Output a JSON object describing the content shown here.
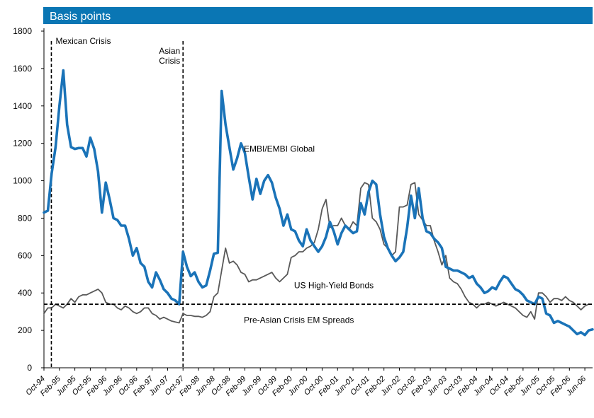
{
  "chart_data": {
    "type": "line",
    "title": "Basis points",
    "ylabel": "",
    "xlabel": "",
    "ylim": [
      0,
      1800
    ],
    "yticks": [
      0,
      200,
      400,
      600,
      800,
      1000,
      1200,
      1400,
      1600,
      1800
    ],
    "xticks": [
      "Oct-94",
      "Feb-95",
      "Jun-95",
      "Oct-95",
      "Feb-96",
      "Jun-96",
      "Oct-96",
      "Feb-97",
      "Jun-97",
      "Oct-97",
      "Feb-98",
      "Jun-98",
      "Oct-98",
      "Feb-99",
      "Jun-99",
      "Oct-99",
      "Feb-00",
      "Jun-00",
      "Oct-00",
      "Feb-01",
      "Jun-01",
      "Oct-01",
      "Feb-02",
      "Jun-02",
      "Oct-02",
      "Feb-03",
      "Jun-03",
      "Oct-03",
      "Feb-04",
      "Jun-04",
      "Oct-04",
      "Feb-05",
      "Jun-05",
      "Oct-05",
      "Feb-06",
      "Jun-06"
    ],
    "colors": {
      "title_bar": "#0a76b4",
      "embi": "#1a73b8",
      "hy": "#595959",
      "reference": "#000000"
    },
    "reference_line": {
      "value": 340,
      "label": "Pre-Asian Crisis EM Spreads"
    },
    "events": [
      {
        "month_index": 1,
        "label": "Mexican Crisis"
      },
      {
        "month_index": 36,
        "label_lines": [
          "Asian",
          "Crisis"
        ]
      }
    ],
    "series": [
      {
        "name": "EMBI/EMBI Global",
        "values": [
          830,
          840,
          1040,
          1180,
          1400,
          1590,
          1300,
          1180,
          1170,
          1175,
          1175,
          1130,
          1230,
          1170,
          1050,
          830,
          990,
          900,
          800,
          790,
          760,
          760,
          690,
          600,
          640,
          560,
          540,
          460,
          430,
          510,
          470,
          420,
          400,
          370,
          360,
          340,
          620,
          540,
          490,
          510,
          460,
          430,
          440,
          520,
          610,
          615,
          1480,
          1300,
          1180,
          1060,
          1120,
          1200,
          1150,
          1020,
          900,
          1010,
          930,
          1000,
          1030,
          990,
          910,
          850,
          760,
          820,
          740,
          730,
          680,
          650,
          740,
          680,
          650,
          620,
          650,
          700,
          780,
          730,
          660,
          720,
          760,
          740,
          720,
          730,
          880,
          820,
          940,
          1000,
          980,
          820,
          700,
          640,
          600,
          570,
          590,
          620,
          750,
          920,
          800,
          960,
          800,
          730,
          720,
          690,
          670,
          640,
          540,
          530,
          520,
          520,
          510,
          500,
          480,
          490,
          450,
          430,
          400,
          410,
          430,
          420,
          460,
          490,
          480,
          450,
          420,
          410,
          390,
          360,
          350,
          340,
          380,
          370,
          290,
          280,
          240,
          250,
          240,
          230,
          220,
          200,
          180,
          190,
          175,
          200,
          205
        ]
      },
      {
        "name": "US High-Yield Bonds",
        "values": [
          290,
          320,
          320,
          340,
          330,
          320,
          340,
          370,
          350,
          380,
          390,
          390,
          400,
          410,
          420,
          400,
          350,
          340,
          340,
          320,
          310,
          330,
          320,
          300,
          290,
          300,
          320,
          320,
          290,
          280,
          260,
          270,
          260,
          250,
          245,
          240,
          290,
          280,
          280,
          275,
          275,
          270,
          280,
          300,
          380,
          400,
          520,
          640,
          560,
          570,
          550,
          510,
          500,
          460,
          470,
          470,
          480,
          490,
          500,
          510,
          480,
          460,
          480,
          500,
          590,
          600,
          620,
          620,
          640,
          650,
          670,
          740,
          850,
          900,
          750,
          760,
          760,
          800,
          760,
          740,
          780,
          760,
          960,
          990,
          980,
          800,
          780,
          740,
          660,
          640,
          600,
          620,
          860,
          860,
          870,
          980,
          990,
          820,
          790,
          760,
          760,
          680,
          620,
          550,
          600,
          480,
          460,
          450,
          420,
          380,
          350,
          340,
          320,
          340,
          340,
          350,
          340,
          330,
          340,
          350,
          340,
          330,
          320,
          300,
          280,
          270,
          300,
          260,
          400,
          400,
          380,
          350,
          370,
          370,
          360,
          380,
          360,
          350,
          330,
          310,
          330,
          340
        ]
      }
    ],
    "annotations": [
      {
        "text": "EMBI/EMBI Global",
        "month_index": 51,
        "value": 1170
      },
      {
        "text": "US High-Yield Bonds",
        "month_index": 64,
        "value": 440
      },
      {
        "text": "Pre-Asian Crisis EM Spreads",
        "month_index": 51,
        "value": 255
      }
    ]
  }
}
